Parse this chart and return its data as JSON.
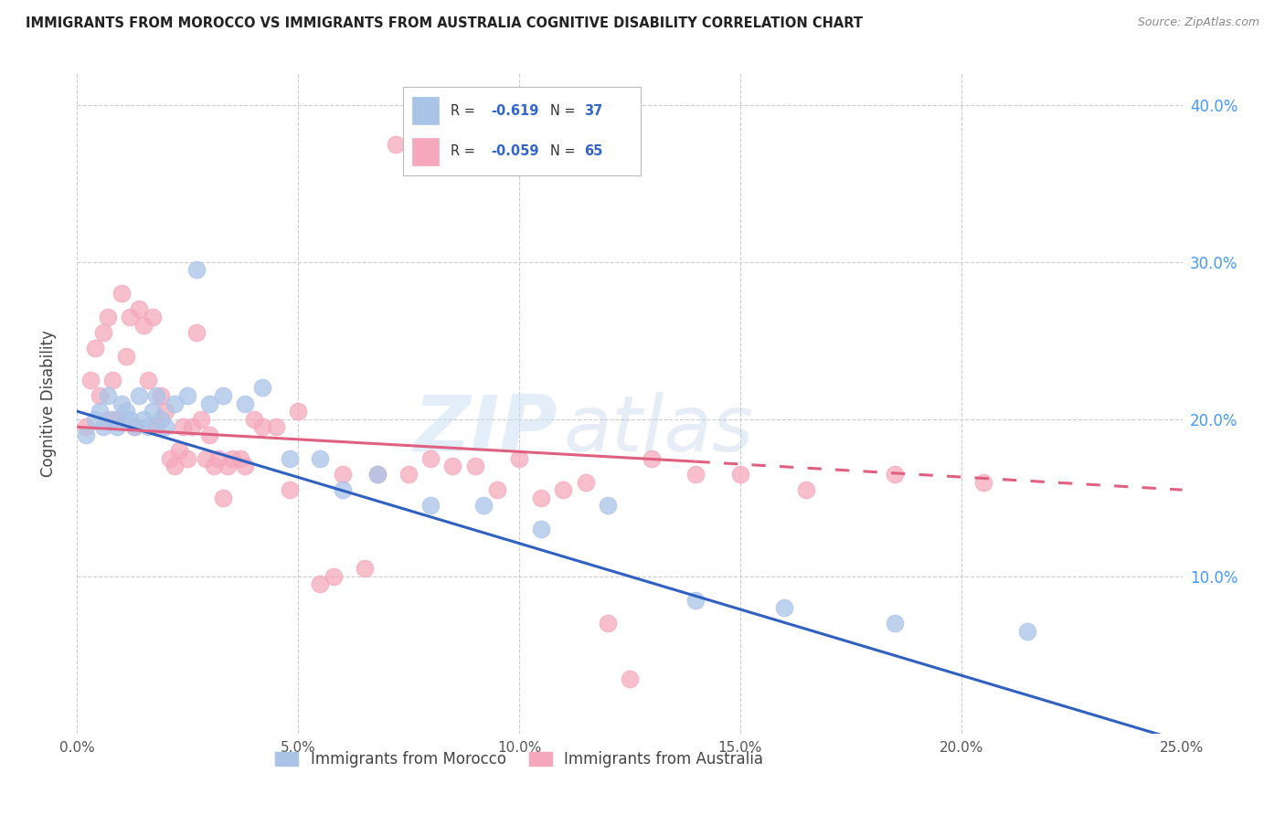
{
  "title": "IMMIGRANTS FROM MOROCCO VS IMMIGRANTS FROM AUSTRALIA COGNITIVE DISABILITY CORRELATION CHART",
  "source": "Source: ZipAtlas.com",
  "ylabel": "Cognitive Disability",
  "legend_label1": "Immigrants from Morocco",
  "legend_label2": "Immigrants from Australia",
  "R1": -0.619,
  "N1": 37,
  "R2": -0.059,
  "N2": 65,
  "color_morocco": "#aac4e8",
  "color_australia": "#f5a8bc",
  "trendline_morocco": "#3060c0",
  "trendline_australia": "#e06080",
  "xlim": [
    0.0,
    0.25
  ],
  "ylim": [
    0.0,
    0.42
  ],
  "xticks": [
    0.0,
    0.05,
    0.1,
    0.15,
    0.2,
    0.25
  ],
  "yticks": [
    0.0,
    0.1,
    0.2,
    0.3,
    0.4
  ],
  "xticklabels": [
    "0.0%",
    "5.0%",
    "10.0%",
    "15.0%",
    "20.0%",
    "25.0%"
  ],
  "yticklabels_right": [
    "",
    "10.0%",
    "20.0%",
    "30.0%",
    "40.0%"
  ],
  "morocco_x": [
    0.002,
    0.004,
    0.005,
    0.006,
    0.007,
    0.008,
    0.009,
    0.01,
    0.011,
    0.012,
    0.013,
    0.014,
    0.015,
    0.016,
    0.017,
    0.018,
    0.019,
    0.02,
    0.022,
    0.025,
    0.027,
    0.03,
    0.033,
    0.038,
    0.042,
    0.048,
    0.055,
    0.06,
    0.068,
    0.08,
    0.092,
    0.105,
    0.12,
    0.14,
    0.16,
    0.185,
    0.215
  ],
  "morocco_y": [
    0.19,
    0.2,
    0.205,
    0.195,
    0.215,
    0.2,
    0.195,
    0.21,
    0.205,
    0.2,
    0.195,
    0.215,
    0.2,
    0.195,
    0.205,
    0.215,
    0.2,
    0.195,
    0.21,
    0.215,
    0.295,
    0.21,
    0.215,
    0.21,
    0.22,
    0.175,
    0.175,
    0.155,
    0.165,
    0.145,
    0.145,
    0.13,
    0.145,
    0.085,
    0.08,
    0.07,
    0.065
  ],
  "australia_x": [
    0.002,
    0.003,
    0.004,
    0.005,
    0.006,
    0.007,
    0.007,
    0.008,
    0.009,
    0.01,
    0.011,
    0.012,
    0.013,
    0.014,
    0.015,
    0.016,
    0.017,
    0.018,
    0.019,
    0.02,
    0.021,
    0.022,
    0.023,
    0.024,
    0.025,
    0.026,
    0.027,
    0.028,
    0.029,
    0.03,
    0.031,
    0.032,
    0.033,
    0.034,
    0.035,
    0.037,
    0.038,
    0.04,
    0.042,
    0.045,
    0.048,
    0.05,
    0.055,
    0.058,
    0.06,
    0.065,
    0.068,
    0.072,
    0.075,
    0.08,
    0.085,
    0.09,
    0.095,
    0.1,
    0.105,
    0.11,
    0.115,
    0.12,
    0.125,
    0.13,
    0.14,
    0.15,
    0.165,
    0.185,
    0.205
  ],
  "australia_y": [
    0.195,
    0.225,
    0.245,
    0.215,
    0.255,
    0.265,
    0.2,
    0.225,
    0.2,
    0.28,
    0.24,
    0.265,
    0.195,
    0.27,
    0.26,
    0.225,
    0.265,
    0.195,
    0.215,
    0.205,
    0.175,
    0.17,
    0.18,
    0.195,
    0.175,
    0.195,
    0.255,
    0.2,
    0.175,
    0.19,
    0.17,
    0.175,
    0.15,
    0.17,
    0.175,
    0.175,
    0.17,
    0.2,
    0.195,
    0.195,
    0.155,
    0.205,
    0.095,
    0.1,
    0.165,
    0.105,
    0.165,
    0.375,
    0.165,
    0.175,
    0.17,
    0.17,
    0.155,
    0.175,
    0.15,
    0.155,
    0.16,
    0.07,
    0.035,
    0.175,
    0.165,
    0.165,
    0.155,
    0.165,
    0.16
  ],
  "trendline_morocco_x0": 0.0,
  "trendline_morocco_y0": 0.205,
  "trendline_morocco_x1": 0.25,
  "trendline_morocco_y1": -0.005,
  "trendline_australia_solid_x0": 0.0,
  "trendline_australia_solid_y0": 0.195,
  "trendline_australia_solid_x1": 0.14,
  "trendline_australia_solid_y1": 0.173,
  "trendline_australia_dash_x0": 0.14,
  "trendline_australia_dash_y0": 0.173,
  "trendline_australia_dash_x1": 0.25,
  "trendline_australia_dash_y1": 0.155,
  "watermark_zip": "ZIP",
  "watermark_atlas": "atlas",
  "background_color": "#ffffff",
  "grid_color": "#cccccc",
  "tick_color": "#4499ff",
  "title_color": "#222222",
  "source_color": "#888888",
  "ylabel_color": "#444444"
}
